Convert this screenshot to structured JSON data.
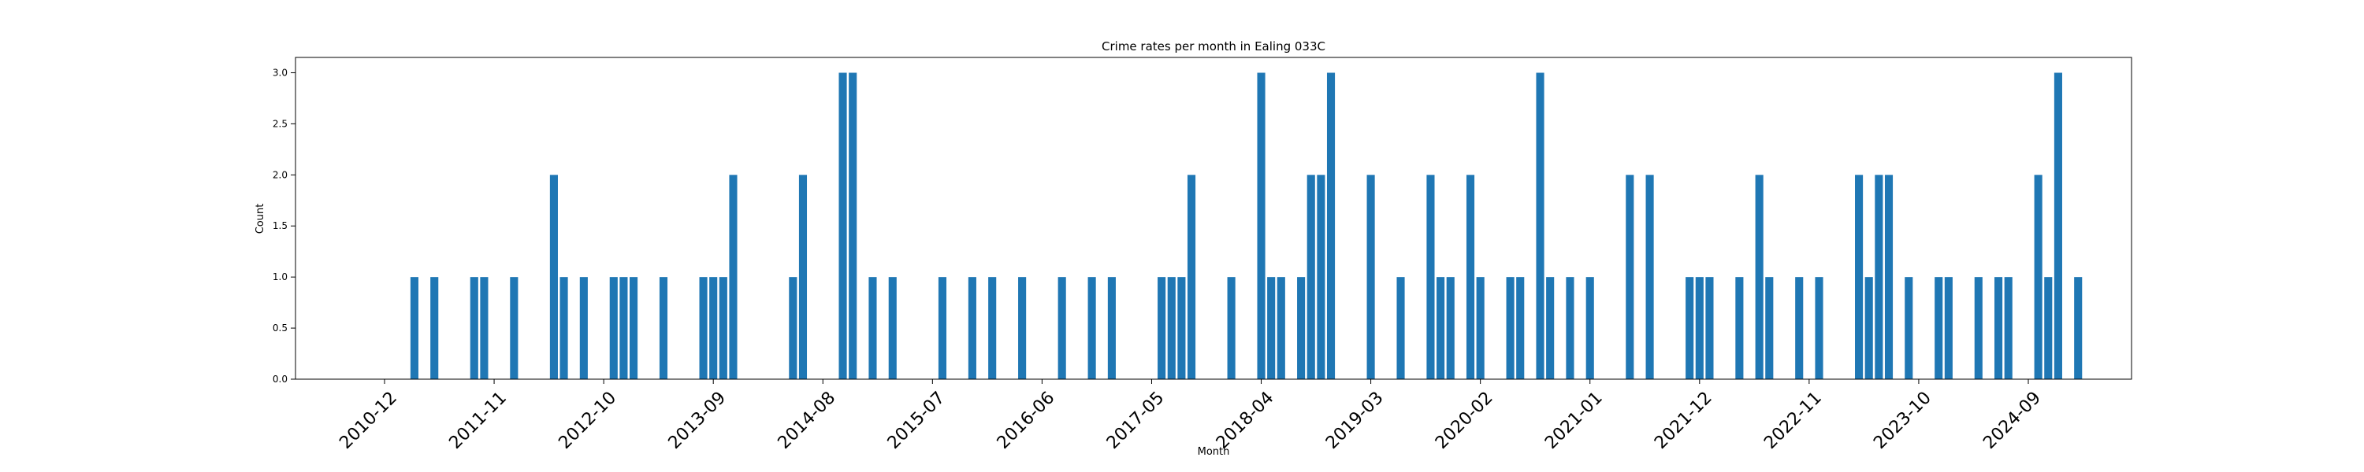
{
  "chart_data": {
    "type": "bar",
    "title": "Crime rates per month in Ealing 033C",
    "xlabel": "Month",
    "ylabel": "Count",
    "ylim": [
      0,
      3.15
    ],
    "y_ticks": [
      "0.0",
      "0.5",
      "1.0",
      "1.5",
      "2.0",
      "2.5",
      "3.0"
    ],
    "x_ticks": [
      "2010-12",
      "2011-11",
      "2012-10",
      "2013-09",
      "2014-08",
      "2015-07",
      "2016-06",
      "2017-05",
      "2018-04",
      "2019-03",
      "2020-02",
      "2021-01",
      "2021-12",
      "2022-11",
      "2023-10",
      "2024-09"
    ],
    "grid": false,
    "color": "#1f77b4",
    "x": [
      "2011-03",
      "2011-05",
      "2011-09",
      "2011-10",
      "2012-01",
      "2012-05",
      "2012-06",
      "2012-08",
      "2012-11",
      "2012-12",
      "2013-01",
      "2013-04",
      "2013-08",
      "2013-09",
      "2013-10",
      "2013-11",
      "2014-05",
      "2014-06",
      "2014-10",
      "2014-11",
      "2015-01",
      "2015-03",
      "2015-08",
      "2015-11",
      "2016-01",
      "2016-04",
      "2016-08",
      "2016-11",
      "2017-01",
      "2017-06",
      "2017-07",
      "2017-08",
      "2017-09",
      "2018-01",
      "2018-04",
      "2018-05",
      "2018-06",
      "2018-08",
      "2018-09",
      "2018-10",
      "2018-11",
      "2019-03",
      "2019-06",
      "2019-09",
      "2019-10",
      "2019-11",
      "2020-01",
      "2020-02",
      "2020-05",
      "2020-06",
      "2020-08",
      "2020-09",
      "2020-11",
      "2021-01",
      "2021-05",
      "2021-07",
      "2021-11",
      "2021-12",
      "2022-01",
      "2022-04",
      "2022-06",
      "2022-07",
      "2022-10",
      "2022-12",
      "2023-04",
      "2023-05",
      "2023-06",
      "2023-07",
      "2023-09",
      "2023-12",
      "2024-01",
      "2024-04",
      "2024-06",
      "2024-07",
      "2024-10",
      "2024-11",
      "2024-12",
      "2025-02"
    ],
    "values": [
      1,
      1,
      1,
      1,
      1,
      2,
      1,
      1,
      1,
      1,
      1,
      1,
      1,
      1,
      1,
      2,
      1,
      2,
      3,
      3,
      1,
      1,
      1,
      1,
      1,
      1,
      1,
      1,
      1,
      1,
      1,
      1,
      2,
      1,
      3,
      1,
      1,
      1,
      2,
      2,
      3,
      2,
      1,
      2,
      1,
      1,
      2,
      1,
      1,
      1,
      3,
      1,
      1,
      1,
      2,
      2,
      1,
      1,
      1,
      1,
      2,
      1,
      1,
      1,
      2,
      1,
      2,
      2,
      1,
      1,
      1,
      1,
      1,
      1,
      2,
      1,
      3,
      1
    ]
  }
}
